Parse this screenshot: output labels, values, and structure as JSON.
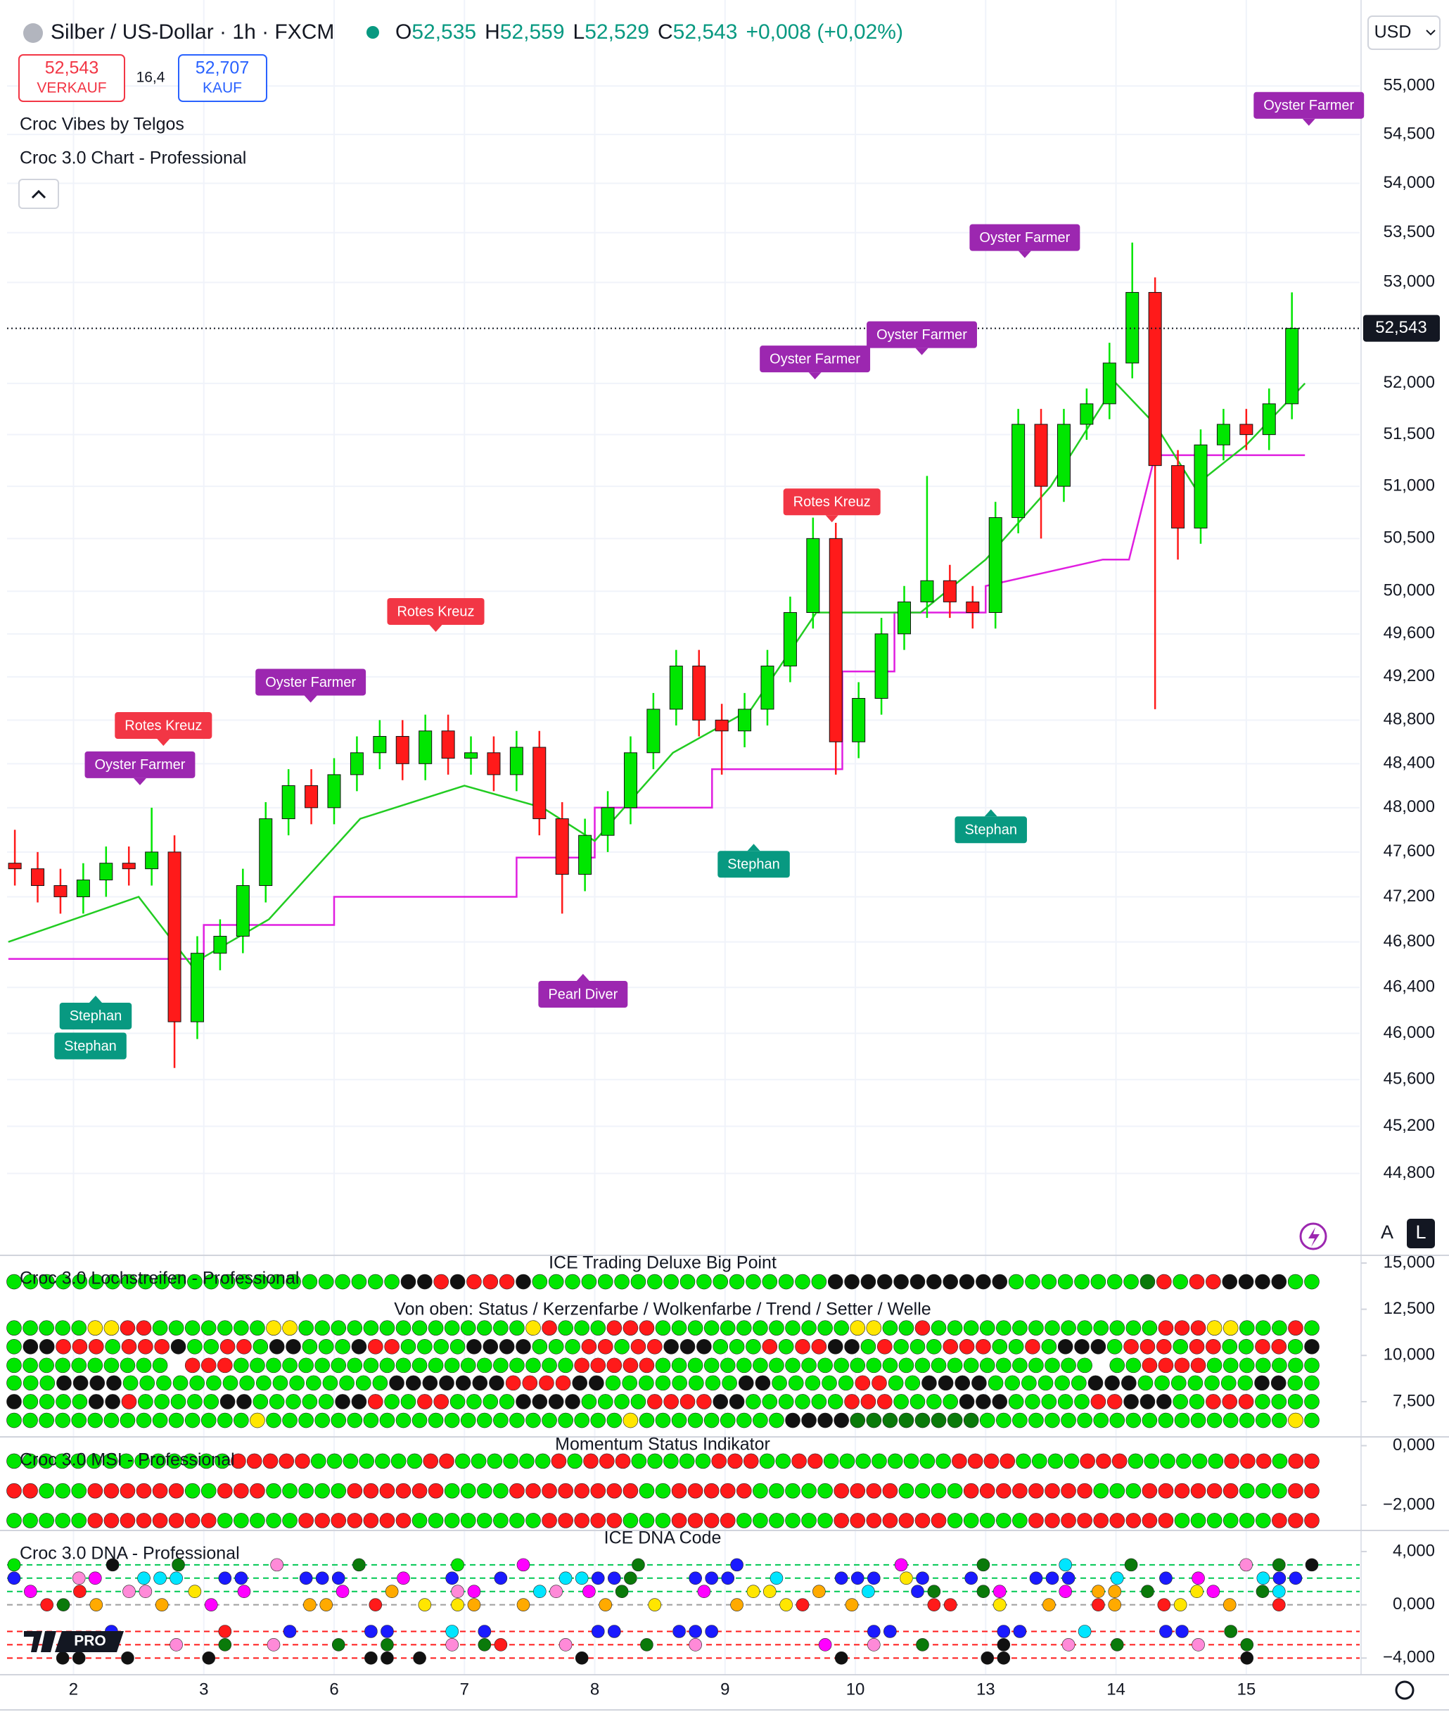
{
  "header": {
    "symbol": "Silber / US-Dollar · 1h · FXCM",
    "ohlc": [
      {
        "key": "O",
        "value": "52,535"
      },
      {
        "key": "H",
        "value": "52,559"
      },
      {
        "key": "L",
        "value": "52,529"
      },
      {
        "key": "C",
        "value": "52,543"
      }
    ],
    "change": "+0,008 (+0,02%)",
    "sell": {
      "price": "52,543",
      "label": "VERKAUF"
    },
    "spread": "16,4",
    "buy": {
      "price": "52,707",
      "label": "KAUF"
    },
    "indicators": [
      "Croc Vibes by Telgos",
      "Croc 3.0 Chart - Professional"
    ],
    "currency": "USD",
    "scale_buttons": [
      "A",
      "L"
    ],
    "logo": "PRO"
  },
  "palette": {
    "g": "#00e600",
    "r": "#ff1a1a",
    "k": "#111111",
    "y": "#ffe600",
    "d": "#0a7a0a",
    "b": "#1a1aff",
    "c": "#00e5ff",
    "m": "#ff00ff",
    "p": "#ff8ad8",
    "o": "#ffaa00"
  },
  "chart_data": [
    {
      "type": "candlestick",
      "log": true,
      "grid": true,
      "up_color": "#00e600",
      "down_color": "#ff1a1a",
      "xlim": [
        -0.51,
        9.87
      ],
      "xticks": [
        {
          "value": 0,
          "label": "2"
        },
        {
          "value": 1,
          "label": "3"
        },
        {
          "value": 2,
          "label": "6"
        },
        {
          "value": 3,
          "label": "7"
        },
        {
          "value": 4,
          "label": "8"
        },
        {
          "value": 5,
          "label": "9"
        },
        {
          "value": 6,
          "label": "10"
        },
        {
          "value": 7,
          "label": "13"
        },
        {
          "value": 8,
          "label": "14"
        },
        {
          "value": 9,
          "label": "15"
        }
      ],
      "ylim": [
        44160,
        55900
      ],
      "yticks": [
        {
          "value": 55000,
          "label": "55,000"
        },
        {
          "value": 54500,
          "label": "54,500"
        },
        {
          "value": 54000,
          "label": "54,000"
        },
        {
          "value": 53500,
          "label": "53,500"
        },
        {
          "value": 53000,
          "label": "53,000"
        },
        {
          "value": 52000,
          "label": "52,000"
        },
        {
          "value": 51500,
          "label": "51,500"
        },
        {
          "value": 51000,
          "label": "51,000"
        },
        {
          "value": 50500,
          "label": "50,500"
        },
        {
          "value": 50000,
          "label": "50,000"
        },
        {
          "value": 49600,
          "label": "49,600"
        },
        {
          "value": 49200,
          "label": "49,200"
        },
        {
          "value": 48800,
          "label": "48,800"
        },
        {
          "value": 48400,
          "label": "48,400"
        },
        {
          "value": 48000,
          "label": "48,000"
        },
        {
          "value": 47600,
          "label": "47,600"
        },
        {
          "value": 47200,
          "label": "47,200"
        },
        {
          "value": 46800,
          "label": "46,800"
        },
        {
          "value": 46400,
          "label": "46,400"
        },
        {
          "value": 46000,
          "label": "46,000"
        },
        {
          "value": 45600,
          "label": "45,600"
        },
        {
          "value": 45200,
          "label": "45,200"
        },
        {
          "value": 44800,
          "label": "44,800"
        }
      ],
      "x": [
        -0.45,
        -0.275,
        -0.1,
        0.075,
        0.25,
        0.425,
        0.6,
        0.775,
        0.95,
        1.125,
        1.3,
        1.475,
        1.65,
        1.825,
        2.0,
        2.175,
        2.35,
        2.525,
        2.7,
        2.875,
        3.05,
        3.225,
        3.4,
        3.575,
        3.75,
        3.925,
        4.1,
        4.275,
        4.45,
        4.625,
        4.8,
        4.975,
        5.15,
        5.325,
        5.5,
        5.675,
        5.85,
        6.025,
        6.2,
        6.375,
        6.55,
        6.725,
        6.9,
        7.075,
        7.25,
        7.425,
        7.6,
        7.775,
        7.95,
        8.125,
        8.3,
        8.475,
        8.65,
        8.825,
        9.0,
        9.175,
        9.35
      ],
      "open": [
        47500,
        47450,
        47300,
        47200,
        47350,
        47500,
        47450,
        47600,
        46100,
        46700,
        46850,
        47300,
        47900,
        48200,
        48000,
        48300,
        48500,
        48650,
        48400,
        48700,
        48450,
        48500,
        48300,
        48550,
        47900,
        47400,
        47750,
        48000,
        48500,
        48900,
        49300,
        48800,
        48700,
        48900,
        49300,
        49800,
        50500,
        48600,
        49000,
        49600,
        49900,
        50100,
        49900,
        49800,
        50700,
        51600,
        51000,
        51600,
        51800,
        52200,
        52900,
        51200,
        50600,
        51400,
        51600,
        51500,
        51800
      ],
      "high": [
        47800,
        47600,
        47450,
        47500,
        47650,
        47650,
        48000,
        47750,
        46850,
        47000,
        47450,
        48050,
        48350,
        48350,
        48450,
        48650,
        48800,
        48800,
        48850,
        48850,
        48650,
        48650,
        48700,
        48700,
        48050,
        47900,
        48150,
        48650,
        49050,
        49450,
        49450,
        48950,
        49050,
        49450,
        49950,
        50700,
        50650,
        49150,
        49750,
        50050,
        51100,
        50250,
        50050,
        50850,
        51750,
        51750,
        51750,
        51950,
        52400,
        53400,
        53050,
        51350,
        51550,
        51750,
        51750,
        51950,
        52900
      ],
      "low": [
        47300,
        47150,
        47050,
        47050,
        47200,
        47300,
        47300,
        45700,
        45950,
        46550,
        46700,
        47150,
        47750,
        47850,
        47850,
        48150,
        48350,
        48250,
        48250,
        48300,
        48300,
        48150,
        48150,
        47750,
        47050,
        47250,
        47600,
        47850,
        48350,
        48750,
        48650,
        48300,
        48550,
        48750,
        49150,
        49650,
        48300,
        48450,
        48850,
        49450,
        49750,
        49750,
        49650,
        49650,
        50550,
        50500,
        50850,
        51450,
        51650,
        52050,
        48900,
        50300,
        50450,
        51250,
        51350,
        51350,
        51650
      ],
      "close": [
        47450,
        47300,
        47200,
        47350,
        47500,
        47450,
        47600,
        46100,
        46700,
        46850,
        47300,
        47900,
        48200,
        48000,
        48300,
        48500,
        48650,
        48400,
        48700,
        48450,
        48500,
        48300,
        48550,
        47900,
        47400,
        47750,
        48000,
        48500,
        48900,
        49300,
        48800,
        48700,
        48900,
        49300,
        49800,
        50500,
        48600,
        49000,
        49600,
        49900,
        50100,
        49900,
        49800,
        50700,
        51600,
        51000,
        51600,
        51800,
        52200,
        52900,
        51200,
        50600,
        51400,
        51600,
        51500,
        51800,
        52543
      ],
      "last_price": {
        "value": 52543,
        "label": "52,543"
      },
      "lines": [
        {
          "color": "#e01ee0",
          "x": [
            -0.5,
            1.0,
            1.0,
            2.0,
            2.0,
            3.4,
            3.4,
            4.0,
            4.0,
            4.9,
            4.9,
            5.9,
            5.9,
            6.3,
            6.3,
            7.0,
            7.0,
            7.9,
            8.1,
            8.3,
            9.45
          ],
          "values": [
            46650,
            46650,
            46950,
            46950,
            47200,
            47200,
            47550,
            47550,
            48000,
            48000,
            48350,
            48350,
            49250,
            49250,
            49800,
            49800,
            50050,
            50300,
            50300,
            51300,
            51300
          ]
        },
        {
          "color": "#22cc22",
          "x": [
            -0.5,
            0.5,
            0.9,
            1.5,
            2.2,
            3.0,
            3.6,
            4.0,
            4.6,
            5.2,
            5.7,
            6.0,
            6.5,
            7.0,
            7.5,
            8.0,
            8.3,
            8.6,
            9.0,
            9.45
          ],
          "values": [
            46800,
            47200,
            46600,
            47000,
            47900,
            48200,
            48000,
            47700,
            48500,
            48900,
            49800,
            49800,
            49800,
            50300,
            51000,
            52000,
            51600,
            51000,
            51400,
            52000
          ]
        }
      ],
      "annotations": [
        {
          "text": "Oyster Farmer",
          "x": 9.48,
          "y": 54800,
          "color": "#9c27b0",
          "pointer": "down"
        },
        {
          "text": "Oyster Farmer",
          "x": 7.3,
          "y": 53450,
          "color": "#9c27b0",
          "pointer": "down"
        },
        {
          "text": "Oyster Farmer",
          "x": 6.51,
          "y": 52480,
          "color": "#9c27b0",
          "pointer": "down"
        },
        {
          "text": "Oyster Farmer",
          "x": 5.69,
          "y": 52240,
          "color": "#9c27b0",
          "pointer": "down"
        },
        {
          "text": "Oyster Farmer",
          "x": 1.82,
          "y": 49150,
          "color": "#9c27b0",
          "pointer": "down"
        },
        {
          "text": "Oyster Farmer",
          "x": 0.51,
          "y": 48390,
          "color": "#9c27b0",
          "pointer": "down"
        },
        {
          "text": "Rotes Kreuz",
          "x": 0.69,
          "y": 48750,
          "color": "#f23645",
          "pointer": "down"
        },
        {
          "text": "Rotes Kreuz",
          "x": 2.78,
          "y": 49810,
          "color": "#f23645",
          "pointer": "down"
        },
        {
          "text": "Rotes Kreuz",
          "x": 5.82,
          "y": 50850,
          "color": "#f23645",
          "pointer": "down"
        },
        {
          "text": "Stephan",
          "x": 0.17,
          "y": 46150,
          "color": "#089981",
          "pointer": "up"
        },
        {
          "text": "Stephan",
          "x": 0.13,
          "y": 45890,
          "color": "#089981",
          "pointer": "none"
        },
        {
          "text": "Stephan",
          "x": 5.22,
          "y": 47490,
          "color": "#089981",
          "pointer": "up"
        },
        {
          "text": "Stephan",
          "x": 7.04,
          "y": 47800,
          "color": "#089981",
          "pointer": "up"
        },
        {
          "text": "Pearl Diver",
          "x": 3.91,
          "y": 46340,
          "color": "#9c27b0",
          "pointer": "up"
        }
      ]
    },
    {
      "type": "dots",
      "title": "ICE Trading Deluxe Big Point",
      "indicator": "Croc 3.0 Lochstreifen - Professional",
      "subtitle": "Von oben: Status / Kerzenfarbe / Wolkenfarbe / Trend / Setter / Welle",
      "ylim": [
        5595,
        15417
      ],
      "yticks": [
        {
          "value": 15000,
          "label": "15,000"
        },
        {
          "value": 12500,
          "label": "12,500"
        },
        {
          "value": 10000,
          "label": "10,000"
        },
        {
          "value": 7500,
          "label": "7,500"
        }
      ],
      "rows": [
        {
          "level": 13988,
          "dots": "ggggggggggggggggggggggggkkrkrrrkggggggggggggggggggkkkkkkkkkkkggggggggdrgrrkkkkgg"
        },
        {
          "level": 11488,
          "dots": "gggggyyrrgggggggyyggggggggggggggyrgggrrrggggggggggggyyggrggggggggggggggrrryygggrg"
        },
        {
          "level": 10476,
          "dots": "gkkrrrgrrrkggrrgkkgggkrrggggkkkkgggrrgrrkkkgggrgrrkkgrgggrrrggrgkkkgrrrgrrggrrgk"
        },
        {
          "level": 9464,
          "dots": "gggggggggg.rrrgggggggggggggggggggggrrrrrggggggggggggggggggggggggggg.ggrrrrggggggg"
        },
        {
          "level": 8512,
          "dots": "gggkkkkggggggggggggggggkkkkkkkrrrrkkggggggggkkgggggrrggkkkkggggggkkkgggggggkkgg"
        },
        {
          "level": 7500,
          "dots": "kggggkkrgggggkkgggggkkrggrrggggkkkkggggrrrrkkggggggrrrggggkkkgggggrrkkkggrrrgggg"
        },
        {
          "level": 6488,
          "dots": "gggggggggggggggyggggggggggggggggggggggygggggggggkkkkddddddddgggggggggggggggggggyg"
        }
      ]
    },
    {
      "type": "dots",
      "title": "Momentum Status Indikator",
      "indicator": "Croc 3.0 MSI - Professional",
      "ylim": [
        -2852,
        296
      ],
      "yticks": [
        {
          "value": 0,
          "label": "0,000"
        },
        {
          "value": -2000,
          "label": "−2,000"
        }
      ],
      "rows": [
        {
          "level": -519,
          "dots": "ggggggggggggggrrrrrgggggggrrggggggrgrrrgggggrrrggrrggggggggrrrrggggrrrggggggrrrgrr"
        },
        {
          "level": -1519,
          "dots": "rrgggrrrrrrggrrrgggggrrrrrrggggrrrrrrrrggrrrrrgggggrrrrggggrrrrrrrrgggrrrrrrgggrr"
        },
        {
          "level": -2519,
          "dots": "gggggrrrrrrrrgggggrrrrrrrggggggggrrrrrgggrrrrggggggrrrrrrrgggggrrrrrrrrrggggggrrr"
        }
      ]
    },
    {
      "type": "dots",
      "title": "ICE DNA Code",
      "indicator": "Croc 3.0 DNA - Professional",
      "ylim": [
        -5250,
        5583
      ],
      "yticks": [
        {
          "value": 4000,
          "label": "4,000"
        },
        {
          "value": 0,
          "label": "0,000"
        },
        {
          "value": -4000,
          "label": "−4,000"
        }
      ],
      "rows": [
        {
          "level": 3000,
          "line": "#00c853",
          "dots": "g.....k...d.....p....d.....g...m......d.....b.........m....d....c...d......p.d.k"
        },
        {
          "level": 2000,
          "line": "#00c853",
          "dots": "b...pm..ccc..bb...bbb...m..b..b...ccbbd...bbb..c...bbb.yb..b...bbb..c..b.m...cbb."
        },
        {
          "level": 1000,
          "line": "#00c853",
          "dots": ".m..r..pp..y..m.....m..o...pm...cp.m.d....m..yy..o..c..bd..dm...m.oo.d..ym..dc.."
        },
        {
          "level": 0,
          "line": "#9e9e9e",
          "dots": "..rd.o...o..m.....oo..r..y.yo..o....o..y....o..yr..o....rr..y..o..ro..ry..o..r.."
        },
        {
          "level": -2000,
          "line": "#ff1a1a",
          "dots": "......b......r...b....bb...c.b......bb...bbb.........bb......bb...c....bb..d....."
        },
        {
          "level": -3000,
          "line": "#ff1a1a",
          "dots": "..........p..d..p...d..d...p.dr...p....d..p.......m..p..d....k...p..d....p..d...."
        },
        {
          "level": -4000,
          "line": "#ff1a1a",
          "dots": "...kk..k....k.........kk.k.........k...............k........kk..............k...."
        }
      ]
    }
  ]
}
